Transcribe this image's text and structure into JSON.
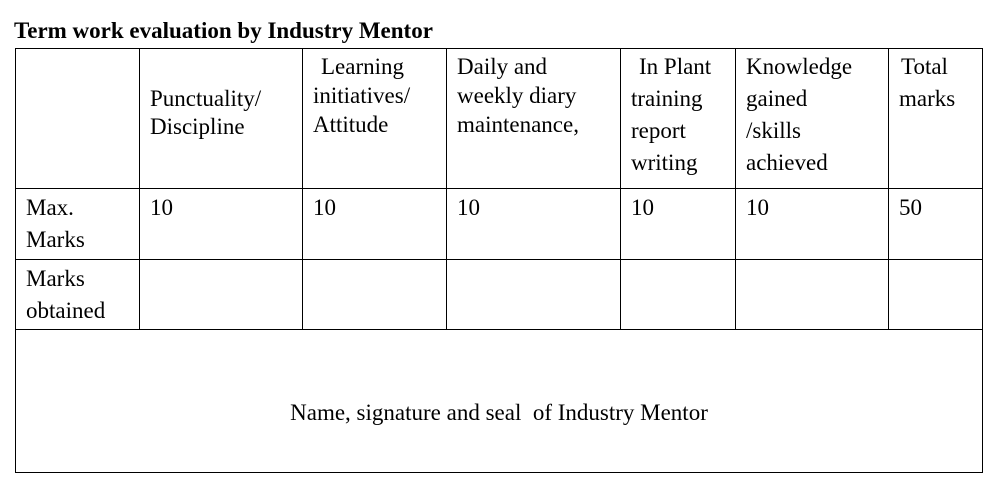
{
  "title": "Term work evaluation by Industry Mentor",
  "table": {
    "header": [
      [
        ""
      ],
      [
        "",
        "Punctuality/",
        "Discipline"
      ],
      [
        "Learning",
        "initiatives/",
        "Attitude"
      ],
      [
        "Daily and",
        "weekly diary",
        "maintenance,"
      ],
      [
        "In Plant",
        "training",
        "report",
        "writing"
      ],
      [
        "Knowledge",
        "gained",
        "/skills",
        "achieved"
      ],
      [
        "Total",
        "marks"
      ]
    ],
    "rows": [
      {
        "label": [
          "Max.",
          "Marks"
        ],
        "values": [
          "10",
          "10",
          "10",
          "10",
          "10",
          "50"
        ]
      },
      {
        "label": [
          "Marks",
          "obtained"
        ],
        "values": [
          "",
          "",
          "",
          "",
          "",
          ""
        ]
      }
    ],
    "footer": "Name, signature and seal  of Industry Mentor"
  }
}
